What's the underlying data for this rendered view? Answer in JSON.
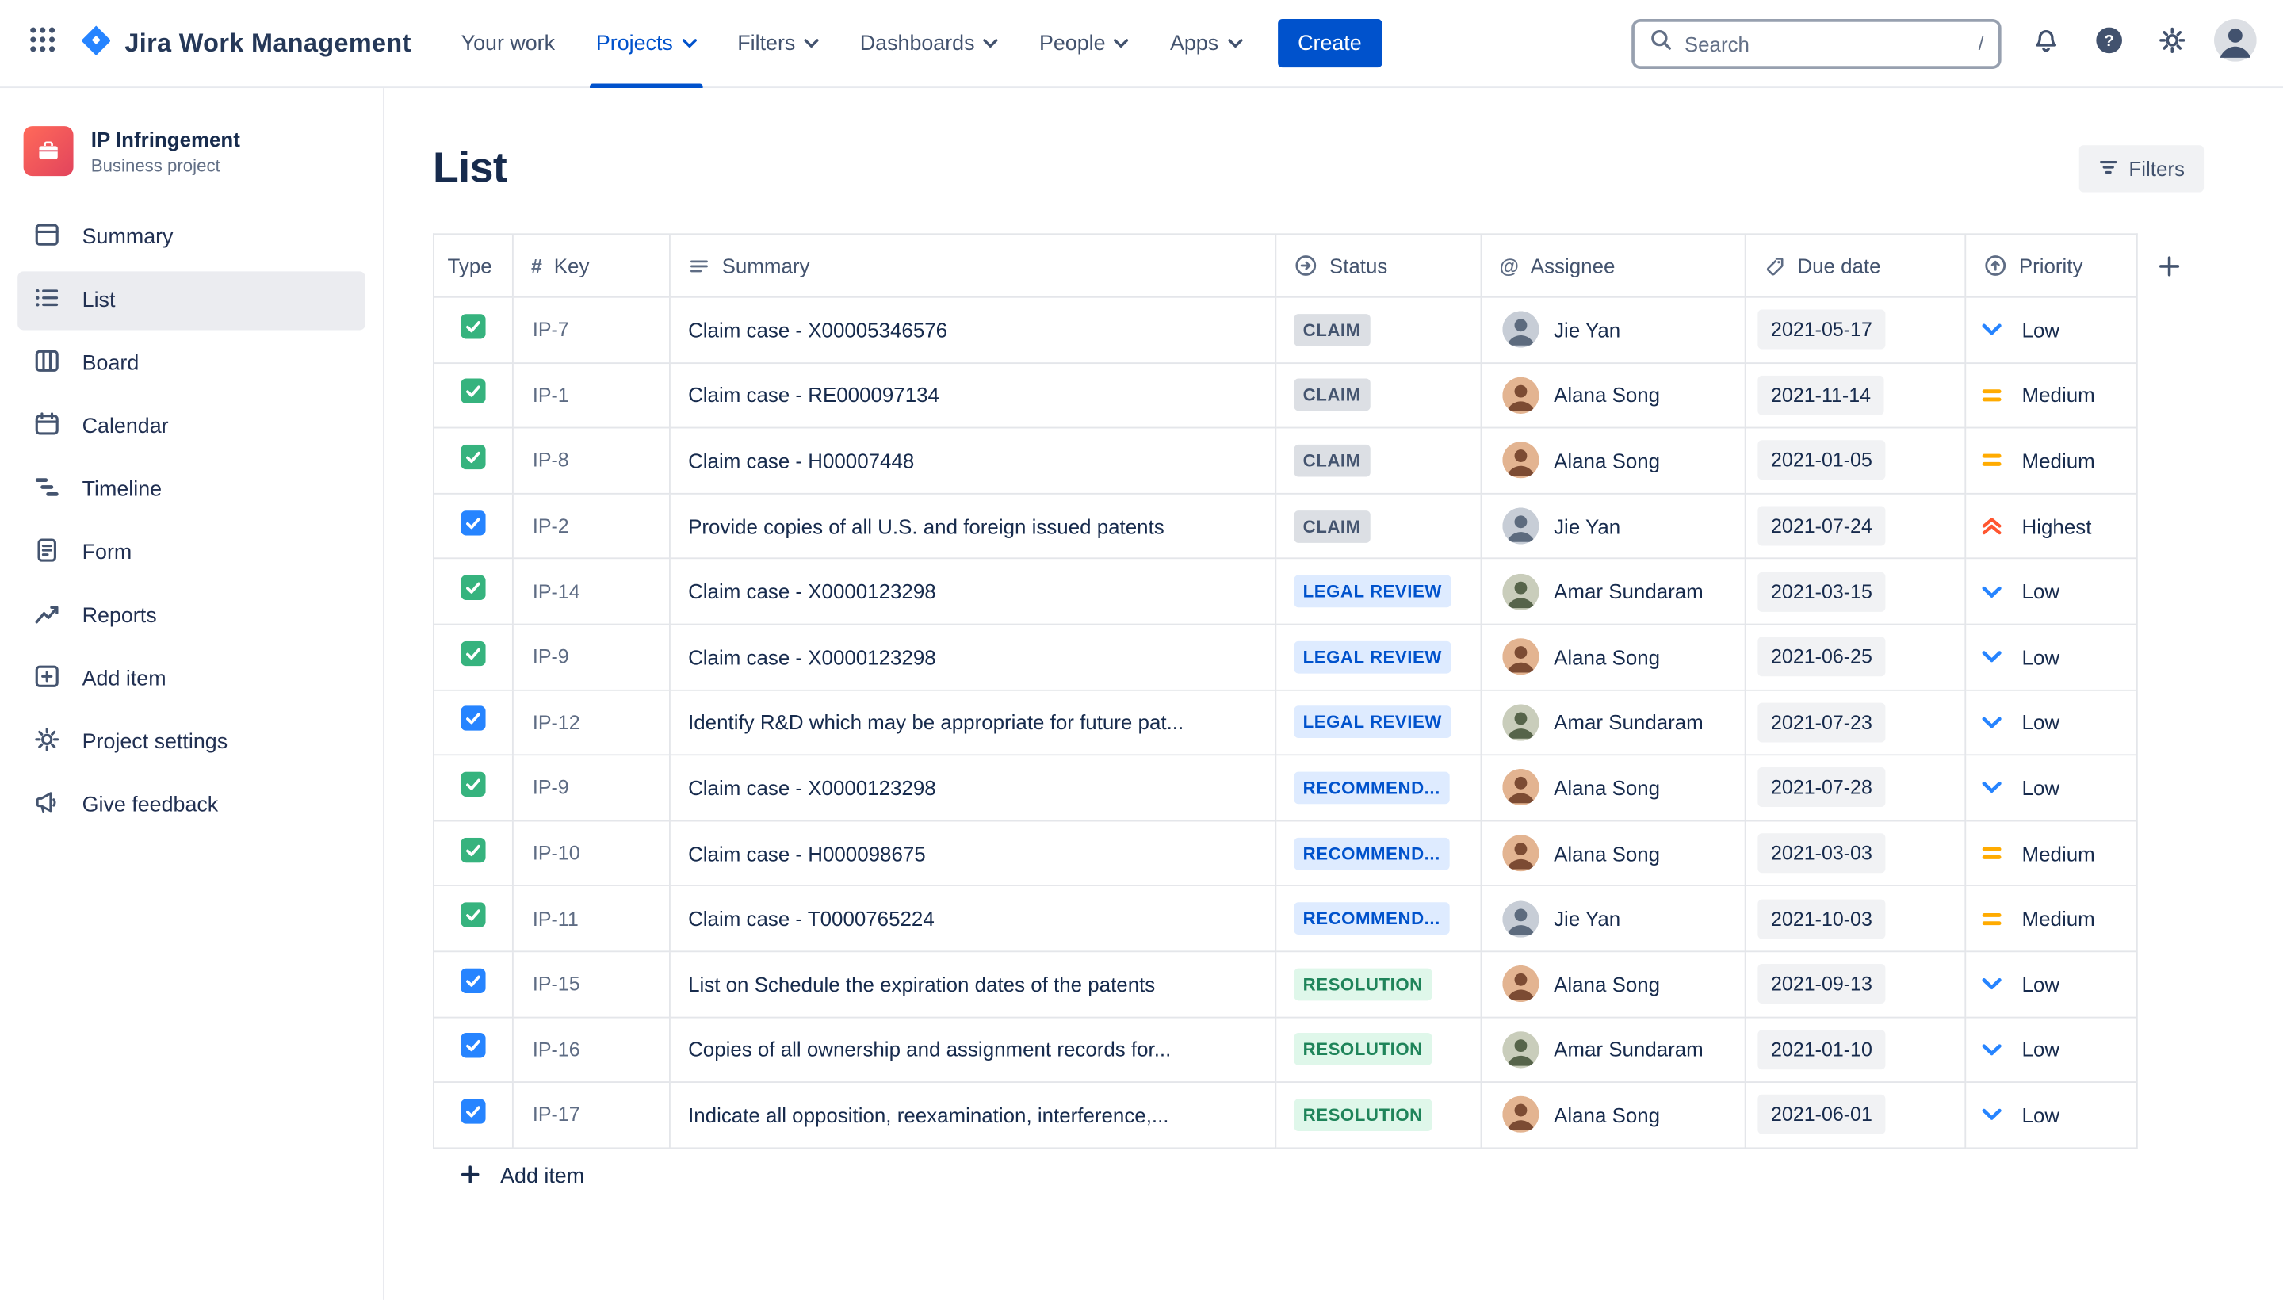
{
  "colors": {
    "brand": "#0052CC",
    "task_green": "#36B37E",
    "check_blue": "#2684FF",
    "priority_low": "#2684FF",
    "priority_medium": "#FFAB00",
    "priority_highest": "#FF5630"
  },
  "navbar": {
    "app_name": "Jira Work Management",
    "items": [
      {
        "label": "Your work",
        "dropdown": false,
        "active": false
      },
      {
        "label": "Projects",
        "dropdown": true,
        "active": true
      },
      {
        "label": "Filters",
        "dropdown": true,
        "active": false
      },
      {
        "label": "Dashboards",
        "dropdown": true,
        "active": false
      },
      {
        "label": "People",
        "dropdown": true,
        "active": false
      },
      {
        "label": "Apps",
        "dropdown": true,
        "active": false
      }
    ],
    "create_label": "Create",
    "search_placeholder": "Search",
    "search_shortcut": "/"
  },
  "sidebar": {
    "project_name": "IP Infringement",
    "project_type": "Business project",
    "items": [
      {
        "label": "Summary",
        "active": false
      },
      {
        "label": "List",
        "active": true
      },
      {
        "label": "Board",
        "active": false
      },
      {
        "label": "Calendar",
        "active": false
      },
      {
        "label": "Timeline",
        "active": false
      },
      {
        "label": "Form",
        "active": false
      },
      {
        "label": "Reports",
        "active": false
      },
      {
        "label": "Add item",
        "active": false
      },
      {
        "label": "Project settings",
        "active": false
      },
      {
        "label": "Give feedback",
        "active": false
      }
    ]
  },
  "main": {
    "title": "List",
    "filters_button": "Filters",
    "add_item_label": "Add item"
  },
  "table": {
    "headers": {
      "type": "Type",
      "key": "Key",
      "summary": "Summary",
      "status": "Status",
      "assignee": "Assignee",
      "due": "Due date",
      "priority": "Priority"
    },
    "rows": [
      {
        "type": "task",
        "key": "IP-7",
        "summary": "Claim case - X00005346576",
        "status": "CLAIM",
        "status_kind": "gray",
        "assignee": "Jie Yan",
        "due": "2021-05-17",
        "priority": "Low"
      },
      {
        "type": "task",
        "key": "IP-1",
        "summary": "Claim case - RE000097134",
        "status": "CLAIM",
        "status_kind": "gray",
        "assignee": "Alana Song",
        "due": "2021-11-14",
        "priority": "Medium"
      },
      {
        "type": "task",
        "key": "IP-8",
        "summary": "Claim case - H00007448",
        "status": "CLAIM",
        "status_kind": "gray",
        "assignee": "Alana Song",
        "due": "2021-01-05",
        "priority": "Medium"
      },
      {
        "type": "check",
        "key": "IP-2",
        "summary": "Provide copies of all U.S. and foreign issued patents",
        "status": "CLAIM",
        "status_kind": "gray",
        "assignee": "Jie Yan",
        "due": "2021-07-24",
        "priority": "Highest"
      },
      {
        "type": "task",
        "key": "IP-14",
        "summary": "Claim case - X0000123298",
        "status": "LEGAL REVIEW",
        "status_kind": "blue",
        "assignee": "Amar Sundaram",
        "due": "2021-03-15",
        "priority": "Low"
      },
      {
        "type": "task",
        "key": "IP-9",
        "summary": "Claim case - X0000123298",
        "status": "LEGAL REVIEW",
        "status_kind": "blue",
        "assignee": "Alana Song",
        "due": "2021-06-25",
        "priority": "Low"
      },
      {
        "type": "check",
        "key": "IP-12",
        "summary": "Identify R&D which may be appropriate for future pat...",
        "status": "LEGAL REVIEW",
        "status_kind": "blue",
        "assignee": "Amar Sundaram",
        "due": "2021-07-23",
        "priority": "Low"
      },
      {
        "type": "task",
        "key": "IP-9",
        "summary": "Claim case - X0000123298",
        "status": "RECOMMEND...",
        "status_kind": "blue",
        "assignee": "Alana Song",
        "due": "2021-07-28",
        "priority": "Low"
      },
      {
        "type": "task",
        "key": "IP-10",
        "summary": "Claim case - H000098675",
        "status": "RECOMMEND...",
        "status_kind": "blue",
        "assignee": "Alana Song",
        "due": "2021-03-03",
        "priority": "Medium"
      },
      {
        "type": "task",
        "key": "IP-11",
        "summary": "Claim case - T0000765224",
        "status": "RECOMMEND...",
        "status_kind": "blue",
        "assignee": "Jie Yan",
        "due": "2021-10-03",
        "priority": "Medium"
      },
      {
        "type": "check",
        "key": "IP-15",
        "summary": "List on Schedule the expiration dates of the patents",
        "status": "RESOLUTION",
        "status_kind": "green",
        "assignee": "Alana Song",
        "due": "2021-09-13",
        "priority": "Low"
      },
      {
        "type": "check",
        "key": "IP-16",
        "summary": "Copies of all ownership and assignment records for...",
        "status": "RESOLUTION",
        "status_kind": "green",
        "assignee": "Amar Sundaram",
        "due": "2021-01-10",
        "priority": "Low"
      },
      {
        "type": "check",
        "key": "IP-17",
        "summary": "Indicate all opposition, reexamination, interference,...",
        "status": "RESOLUTION",
        "status_kind": "green",
        "assignee": "Alana Song",
        "due": "2021-06-01",
        "priority": "Low"
      }
    ]
  },
  "avatar_colors": {
    "Jie Yan": [
      "#C7CDD6",
      "#5D6B7E"
    ],
    "Alana Song": [
      "#E3B491",
      "#7C4B33"
    ],
    "Amar Sundaram": [
      "#C9CDBB",
      "#56644A"
    ]
  }
}
